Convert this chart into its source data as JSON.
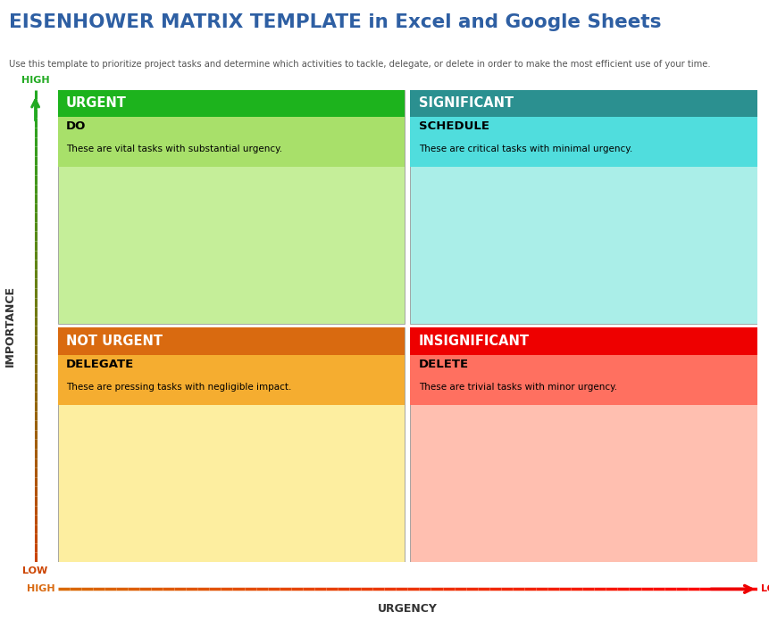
{
  "title": "EISENHOWER MATRIX TEMPLATE in Excel and Google Sheets",
  "subtitle": "Use this template to prioritize project tasks and determine which activities to tackle, delegate, or delete in order to make the most efficient use of your time.",
  "title_color": "#2E5FA3",
  "subtitle_color": "#555555",
  "quadrants": [
    {
      "label": "URGENT",
      "label_color": "#ffffff",
      "header_color": "#1DB31D",
      "body_color": "#C5EE99",
      "sublabel": "DO",
      "sublabel_color": "#000000",
      "subheader_color": "#A8E06A",
      "desc": "These are vital tasks with substantial urgency.",
      "desc_color": "#000000",
      "row": 0,
      "col": 0
    },
    {
      "label": "SIGNIFICANT",
      "label_color": "#ffffff",
      "header_color": "#2B9090",
      "body_color": "#AAEEE8",
      "sublabel": "SCHEDULE",
      "sublabel_color": "#000000",
      "subheader_color": "#50DDDD",
      "desc": "These are critical tasks with minimal urgency.",
      "desc_color": "#000000",
      "row": 0,
      "col": 1
    },
    {
      "label": "NOT URGENT",
      "label_color": "#ffffff",
      "header_color": "#D96A10",
      "body_color": "#FDEEA0",
      "sublabel": "DELEGATE",
      "sublabel_color": "#000000",
      "subheader_color": "#F5AD30",
      "desc": "These are pressing tasks with negligible impact.",
      "desc_color": "#000000",
      "row": 1,
      "col": 0
    },
    {
      "label": "INSIGNIFICANT",
      "label_color": "#ffffff",
      "header_color": "#EE0000",
      "body_color": "#FFBFB0",
      "sublabel": "DELETE",
      "sublabel_color": "#000000",
      "subheader_color": "#FF7060",
      "desc": "These are trivial tasks with minor urgency.",
      "desc_color": "#000000",
      "row": 1,
      "col": 1
    }
  ],
  "axis_label_importance": "IMPORTANCE",
  "axis_label_urgency": "URGENCY",
  "axis_high_label": "HIGH",
  "axis_low_label_importance": "LOW",
  "axis_high_label_urgency": "HIGH",
  "axis_low_label_urgency": "LOW",
  "importance_arrow_color": "#22AA22",
  "urgency_arrow_color": "#CC4400",
  "background_color": "#ffffff"
}
